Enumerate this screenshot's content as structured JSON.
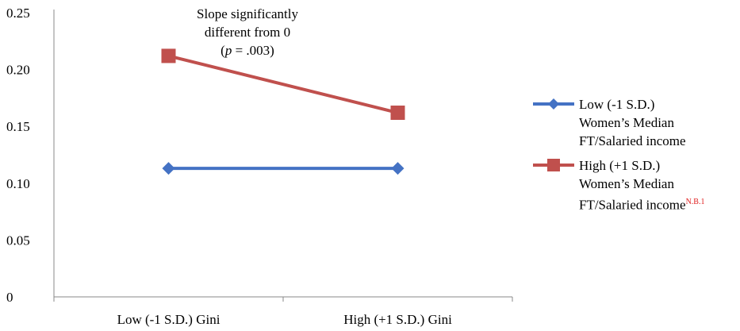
{
  "chart_data": {
    "type": "line",
    "categories": [
      "Low (-1 S.D.) Gini",
      "High (+1 S.D.) Gini"
    ],
    "ylim": [
      0,
      0.25
    ],
    "yticks": [
      "0",
      "0.05",
      "0.10",
      "0.15",
      "0.20",
      "0.25"
    ],
    "ytick_values": [
      0,
      0.05,
      0.1,
      0.15,
      0.2,
      0.25
    ],
    "grid": false,
    "legend_position": "right",
    "series": [
      {
        "name_lines": [
          "Low (-1 S.D.)",
          "Women’s Median",
          "FT/Salaried income"
        ],
        "values": [
          0.113,
          0.113
        ],
        "color": "#4472C4",
        "marker": "diamond"
      },
      {
        "name_lines": [
          "High (+1 S.D.)",
          "Women’s Median",
          "FT/Salaried income"
        ],
        "name_note": "N.B.1",
        "values": [
          0.212,
          0.162
        ],
        "color": "#C0504D",
        "marker": "square"
      }
    ],
    "annotation": {
      "line1": "Slope significantly",
      "line2": "different from 0",
      "p_symbol": "p",
      "p_rest": " = .003)",
      "p_open": "("
    }
  }
}
